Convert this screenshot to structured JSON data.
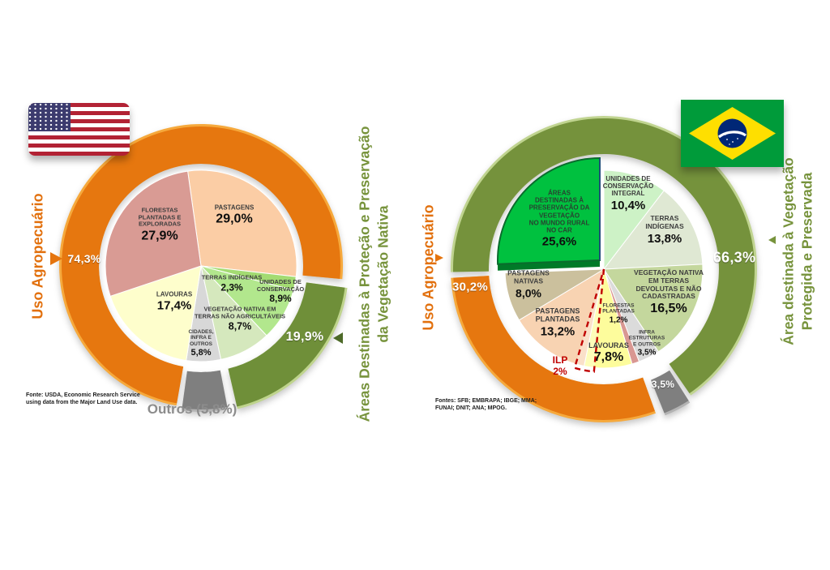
{
  "texts": {
    "usa": {
      "left_axis_label": "Uso Agropecuário",
      "left_axis_value": "74,3%",
      "right_axis_line1": "Áreas Destinadas à Proteção e Preservação",
      "right_axis_line2": "da Vegetação Nativa",
      "right_axis_value": "19,9%",
      "outros_label": "Outros (5,8%)",
      "source_line1": "Fonte: USDA,  Economic Research Service",
      "source_line2": "using data from the Major  Land Use data."
    },
    "brasil": {
      "left_axis_label": "Uso Agropecuário",
      "left_axis_value": "30,2%",
      "right_axis_line1": "Área destinada à Vegetação",
      "right_axis_line2": "Protegida e Preservada",
      "right_axis_value": "66,3%",
      "source_line1": "Fontes: SFB; EMBRAPA; IBGE; MMA;",
      "source_line2": "FUNAI; DNIT; ANA; MPOG."
    }
  },
  "colors": {
    "agro_orange": "#E6770F",
    "preserve_green": "#75923C",
    "outros_gray": "#7F7F7F",
    "car_bright_green": "#00C13F",
    "ilp_red": "#C00000"
  },
  "chart_data": [
    {
      "type": "pie",
      "flag": "usa-flag",
      "center": [
        248,
        328
      ],
      "pie_radius": 118,
      "rotation": -8,
      "ring": {
        "inner_radius": 126,
        "outer_radius": 172,
        "edge": 3
      },
      "slices": [
        {
          "label": "PASTAGENS",
          "value": 29.0,
          "value_label": "29,0%",
          "color": "#FBCDA5",
          "label_pos": [
            41,
            -62
          ],
          "name_size": 8,
          "value_size": 16
        },
        {
          "label": "TERRAS INDÍGENAS",
          "value": 2.3,
          "value_label": "2,3%",
          "color": "#A3DB72",
          "label_pos": [
            38,
            22
          ],
          "name_size": 7.5,
          "value_size": 12
        },
        {
          "label": "UNIDADES DE\nCONSERVAÇÃO",
          "value": 8.9,
          "value_label": "8,9%",
          "color": "#B2E78D",
          "label_pos": [
            98,
            32
          ],
          "name_size": 7.5,
          "value_size": 12
        },
        {
          "label": "VEGETAÇÃO NATIVA EM\nTERRAS NÃO AGRICULTÁVEIS",
          "value": 8.7,
          "value_label": "8,7%",
          "color": "#D5E8BD",
          "label_pos": [
            48,
            66
          ],
          "name_size": 7.5,
          "value_size": 12.5
        },
        {
          "label": "CIDADES,\nINFRA E\nOUTROS",
          "value": 5.8,
          "value_label": "5,8%",
          "color": "#D8D8D8",
          "label_pos": [
            0,
            96
          ],
          "name_size": 6.5,
          "value_size": 11
        },
        {
          "label": "LAVOURAS",
          "value": 17.4,
          "value_label": "17,4%",
          "color": "#FEFECC",
          "label_pos": [
            -33,
            44
          ],
          "name_size": 8,
          "value_size": 15
        },
        {
          "label": "FLORESTAS\nPLANTADAS E\nEXPLORADAS",
          "value": 27.9,
          "value_label": "27,9%",
          "color": "#D99B94",
          "label_pos": [
            -51,
            -50
          ],
          "name_size": 7.5,
          "value_size": 16
        }
      ],
      "rings": [
        {
          "from": 54.7,
          "to": 129.0,
          "color": "#E6770F",
          "edge_color": "#F6A93C",
          "label": "74,3%",
          "label_pos": [
            104,
            319
          ],
          "label_size": 14
        },
        {
          "from": 29.0,
          "to": 48.9,
          "color": "#6F8F39",
          "edge_color": "#BFD48D",
          "label": "19,9%",
          "label_pos": [
            376,
            416
          ],
          "label_size": 16,
          "offset": [
            5,
            4
          ],
          "grow": 2
        },
        {
          "from": 48.9,
          "to": 54.7,
          "color": "#7F7F7F",
          "edge_color": "#B3B3B3",
          "offset": [
            0,
            5
          ]
        }
      ]
    },
    {
      "type": "pie",
      "flag": "brazil-flag",
      "center": [
        745,
        332
      ],
      "pie_radius": 122,
      "rotation": 0,
      "ring": {
        "inner_radius": 142,
        "outer_radius": 186,
        "edge": 3
      },
      "slices": [
        {
          "label": "UNIDADES DE\nCONSERVAÇÃO\nINTEGRAL",
          "value": 10.4,
          "value_label": "10,4%",
          "color": "#CDF2C6",
          "label_pos": [
            30,
            -93
          ],
          "name_size": 8,
          "value_size": 15
        },
        {
          "label": "TERRAS\nINDÍGENAS",
          "value": 13.8,
          "value_label": "13,8%",
          "color": "#DFE8D3",
          "label_pos": [
            75,
            -48
          ],
          "name_size": 8.5,
          "value_size": 15
        },
        {
          "label": "VEGETAÇÃO NATIVA\nEM TERRAS\nDEVOLUTAS E NÃO\nCADASTRADAS",
          "value": 16.5,
          "value_label": "16,5%",
          "color": "#C4D79D",
          "label_pos": [
            80,
            29
          ],
          "name_size": 8.5,
          "value_size": 16
        },
        {
          "label": "INFRA\nESTRUTURAS\nE OUTROS",
          "value": 3.5,
          "value_label": "3,5%",
          "color": "#DBDBDB",
          "label_pos": [
            53,
            92
          ],
          "name_size": 6.5,
          "value_size": 10
        },
        {
          "label": "FLORESTAS\nPLANTADAS",
          "value": 1.2,
          "value_label": "1,2%",
          "color": "#D99792",
          "label_pos": [
            18,
            55
          ],
          "name_size": 6.5,
          "value_size": 10
        },
        {
          "label": "LAVOURAS",
          "value": 7.8,
          "value_label": "7,8%",
          "color": "#FDFC9C",
          "label_pos": [
            6,
            104
          ],
          "name_size": 9,
          "value_size": 16
        },
        {
          "label": "PASTAGENS\nPLANTADAS",
          "value": 13.2,
          "value_label": "13,2%",
          "color": "#F8D3B2",
          "label_pos": [
            -57,
            66
          ],
          "name_size": 9,
          "value_size": 15
        },
        {
          "label": "PASTAGENS\nNATIVAS",
          "value": 8.0,
          "value_label": "8,0%",
          "color": "#CBC09D",
          "label_pos": [
            -93,
            19
          ],
          "name_size": 8.5,
          "value_size": 14
        },
        {
          "label": "ÁREAS\nDESTINADAS À\nPRESERVAÇÃO DA\nVEGETAÇÃO\nNO MUNDO RURAL\nNO CAR",
          "value": 25.6,
          "value_label": "25,6%",
          "color": "#00C13F",
          "label_pos": [
            -55,
            -62
          ],
          "name_size": 8,
          "value_size": 15,
          "exploded": true,
          "offset": [
            -5,
            -11
          ],
          "side_color": "#007A28",
          "border_color": "#0B6B2D",
          "edge_line": true,
          "text_color": "#284231"
        }
      ],
      "rings": [
        {
          "from": 74.4,
          "to": 140.7,
          "color": "#75923C",
          "edge_color": "#C0D490",
          "label": "66,3%",
          "label_pos": [
            906,
            318
          ],
          "label_size": 18
        },
        {
          "from": 40.7,
          "to": 44.2,
          "color": "#7F7F7F",
          "edge_color": "#B3B3B3",
          "label": "3,5%",
          "label_pos": [
            818,
            474
          ],
          "label_size": 12,
          "offset": [
            5,
            5
          ]
        },
        {
          "from": 44.2,
          "to": 74.4,
          "color": "#E6770F",
          "edge_color": "#F6A93C",
          "label": "30,2%",
          "label_pos": [
            580,
            354
          ],
          "label_size": 15
        }
      ],
      "annotation": {
        "label": "ILP",
        "value_label": "2%",
        "from_deg": 185.5,
        "to_deg": 196.5,
        "color": "#C00000",
        "label_pos": [
          691,
          452
        ]
      }
    }
  ]
}
